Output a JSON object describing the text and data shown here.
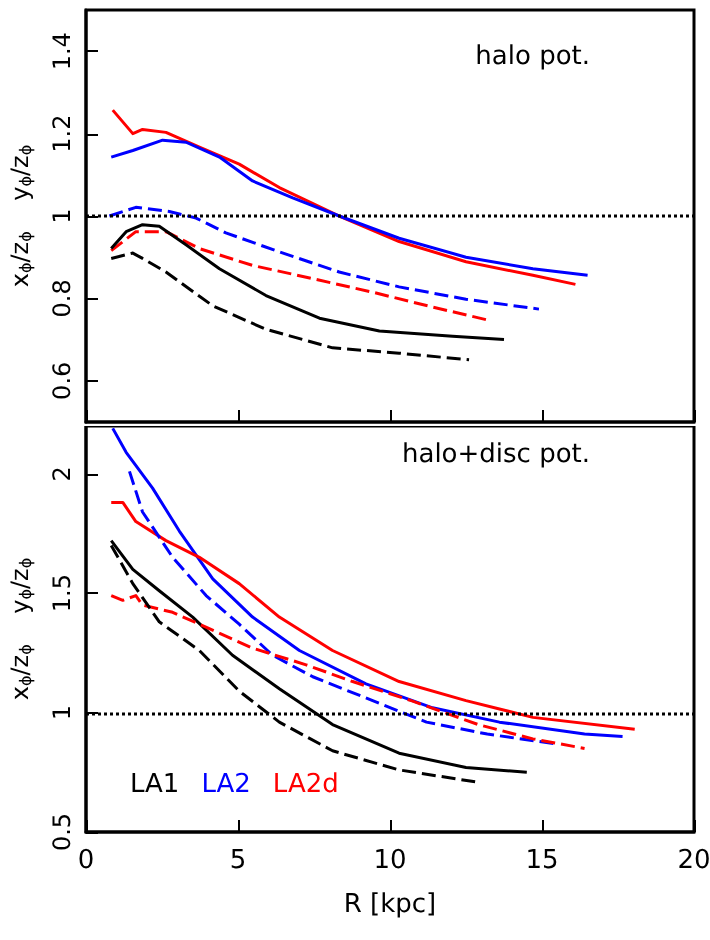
{
  "chart_data": [
    {
      "type": "line",
      "ylabel": "x$_{ϕ}$/z$_{ϕ}$    y$_{ϕ}$/z$_{ϕ}$",
      "annotations": [
        "halo pot."
      ],
      "xlim": [
        0,
        20
      ],
      "xticks": [
        0,
        5,
        10,
        15,
        20
      ],
      "ylim": [
        0.5,
        1.5
      ],
      "yticks": [
        0.6,
        0.8,
        1,
        1.2,
        1.4
      ],
      "tick_labels": "y",
      "grid": false,
      "legend": false,
      "marker": "none",
      "ref_lines": [
        {
          "axis": "y",
          "value": 1,
          "color": "#000000",
          "line_style": "dotted"
        }
      ],
      "series": [
        {
          "color": "#ff0000",
          "line_style": "solid",
          "x": [
            0.88,
            1.54,
            1.86,
            2.63,
            3.73,
            5.04,
            6.36,
            8.33,
            10.3,
            12.5,
            14.7,
            16.1
          ],
          "values": [
            1.257,
            1.2,
            1.21,
            1.203,
            1.167,
            1.126,
            1.069,
            1.0,
            0.938,
            0.889,
            0.856,
            0.834
          ]
        },
        {
          "color": "#0000ff",
          "line_style": "solid",
          "x": [
            0.83,
            1.54,
            2.52,
            3.29,
            4.39,
            5.48,
            6.8,
            8.33,
            10.3,
            12.5,
            14.7,
            16.5
          ],
          "values": [
            1.143,
            1.159,
            1.184,
            1.179,
            1.143,
            1.085,
            1.044,
            1.0,
            0.946,
            0.9,
            0.872,
            0.856
          ]
        },
        {
          "color": "#0000ff",
          "line_style": "dashed",
          "x": [
            0.77,
            1.64,
            2.74,
            3.62,
            4.6,
            6.36,
            8.33,
            10.3,
            12.5,
            14.9
          ],
          "values": [
            1.0,
            1.021,
            1.011,
            0.995,
            0.959,
            0.913,
            0.864,
            0.828,
            0.798,
            0.774
          ]
        },
        {
          "color": "#ff0000",
          "line_style": "dashed",
          "x": [
            0.83,
            1.64,
            2.63,
            3.73,
            5.48,
            7.46,
            9.43,
            11.4,
            13.3
          ],
          "values": [
            0.916,
            0.962,
            0.962,
            0.921,
            0.88,
            0.848,
            0.815,
            0.779,
            0.746
          ]
        },
        {
          "color": "#000000",
          "line_style": "solid",
          "x": [
            0.83,
            1.32,
            1.86,
            2.41,
            3.29,
            4.39,
            5.92,
            7.68,
            9.65,
            12.06,
            13.75
          ],
          "values": [
            0.921,
            0.962,
            0.979,
            0.975,
            0.93,
            0.872,
            0.807,
            0.752,
            0.721,
            0.708,
            0.7
          ]
        },
        {
          "color": "#000000",
          "line_style": "dashed",
          "x": [
            0.83,
            1.54,
            1.86,
            2.63,
            4.17,
            5.92,
            8.11,
            10.3,
            12.6
          ],
          "values": [
            0.897,
            0.91,
            0.897,
            0.864,
            0.782,
            0.725,
            0.68,
            0.667,
            0.651
          ]
        }
      ]
    },
    {
      "type": "line",
      "xlabel": "R [kpc]",
      "ylabel": "x$_{ϕ}$/z$_{ϕ}$    y$_{ϕ}$/z$_{ϕ}$",
      "annotations": [
        "halo+disc pot."
      ],
      "xlim": [
        0,
        20
      ],
      "xticks": [
        0,
        5,
        10,
        15,
        20
      ],
      "ylim": [
        0.5,
        2.2
      ],
      "yticks": [
        0.5,
        1,
        1.5,
        2
      ],
      "grid": false,
      "legend": "bottom left",
      "marker": "none",
      "ref_lines": [
        {
          "axis": "y",
          "value": 1,
          "color": "#000000",
          "line_style": "dotted"
        }
      ],
      "series": [
        {
          "name": "LA1",
          "color": "#000000",
          "line_style": "solid",
          "x": [
            0.83,
            1.54,
            2.41,
            3.51,
            4.82,
            6.36,
            8.11,
            10.3,
            12.5,
            14.5
          ],
          "values": [
            1.72,
            1.6,
            1.51,
            1.4,
            1.24,
            1.1,
            0.95,
            0.83,
            0.77,
            0.75
          ]
        },
        {
          "name": "LA2",
          "color": "#0000ff",
          "line_style": "solid",
          "x": [
            0.88,
            1.32,
            2.19,
            3.07,
            4.17,
            5.48,
            7.02,
            9.21,
            11.4,
            13.6,
            16.4,
            17.65
          ],
          "values": [
            2.19,
            2.09,
            1.94,
            1.76,
            1.56,
            1.4,
            1.26,
            1.12,
            1.02,
            0.96,
            0.91,
            0.9
          ]
        },
        {
          "name": "LA2d",
          "color": "#ff0000",
          "line_style": "solid",
          "x": [
            0.83,
            1.21,
            1.64,
            2.63,
            3.73,
            5.04,
            6.36,
            8.11,
            10.3,
            12.5,
            14.7,
            18.05
          ],
          "values": [
            1.88,
            1.88,
            1.8,
            1.72,
            1.65,
            1.54,
            1.4,
            1.26,
            1.13,
            1.05,
            0.98,
            0.93
          ]
        },
        {
          "color": "#0000ff",
          "line_style": "dashed",
          "x": [
            1.43,
            1.86,
            2.85,
            3.95,
            5.04,
            6.14,
            7.46,
            9.43,
            11.2,
            13.2,
            15.4
          ],
          "values": [
            2.01,
            1.84,
            1.65,
            1.49,
            1.37,
            1.24,
            1.15,
            1.05,
            0.96,
            0.91,
            0.87
          ]
        },
        {
          "color": "#ff0000",
          "line_style": "dashed",
          "x": [
            0.83,
            1.21,
            1.64,
            1.86,
            2.85,
            3.73,
            5.48,
            7.24,
            8.77,
            10.7,
            12.9,
            14.7,
            16.4
          ],
          "values": [
            1.49,
            1.47,
            1.49,
            1.45,
            1.42,
            1.37,
            1.27,
            1.2,
            1.13,
            1.05,
            0.95,
            0.89,
            0.85
          ]
        },
        {
          "color": "#000000",
          "line_style": "dashed",
          "x": [
            0.83,
            1.54,
            2.41,
            3.73,
            5.04,
            6.36,
            8.11,
            10.3,
            12.8
          ],
          "values": [
            1.7,
            1.54,
            1.38,
            1.26,
            1.09,
            0.96,
            0.84,
            0.76,
            0.71
          ]
        }
      ]
    }
  ]
}
